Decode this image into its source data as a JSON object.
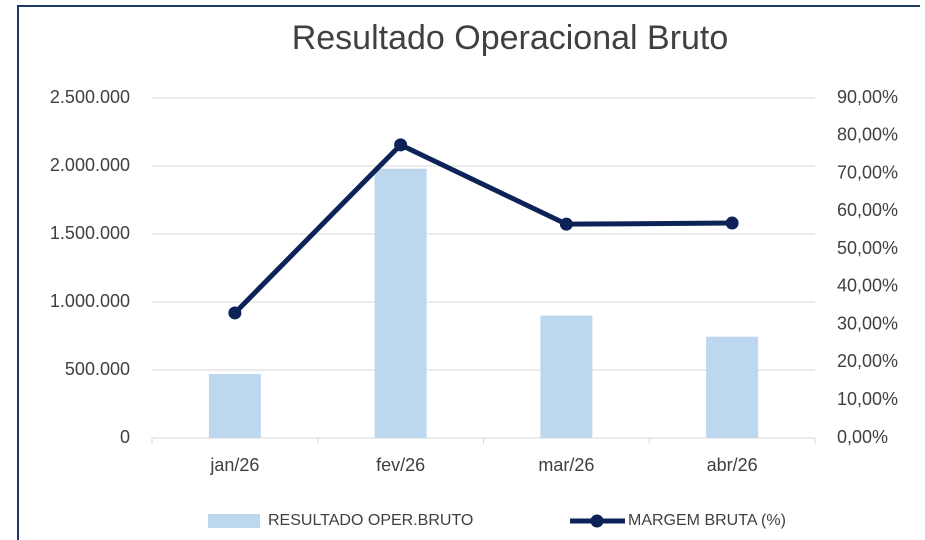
{
  "chart_data": {
    "type": "bar+line",
    "title": "Resultado Operacional Bruto",
    "categories": [
      "jan/26",
      "fev/26",
      "mar/26",
      "abr/26"
    ],
    "series": [
      {
        "name": "RESULTADO OPER.BRUTO",
        "type": "bar",
        "color": "#bdd7ee",
        "values": [
          470000,
          1980000,
          900000,
          745000
        ]
      },
      {
        "name": "MARGEM BRUTA (%)",
        "type": "line",
        "color": "#0d2357",
        "axis": "y2",
        "values": [
          33.1,
          77.6,
          56.6,
          56.9
        ]
      }
    ],
    "ylim": [
      0,
      2500000
    ],
    "yticks": [
      0,
      {
        "value": 500000,
        "label": "500.000"
      },
      {
        "value": 1000000,
        "label": "1.000.000"
      },
      {
        "value": 1500000,
        "label": "1.500.000"
      },
      {
        "value": 2000000,
        "label": "2.000.000"
      },
      {
        "value": 2500000,
        "label": "2.500.000"
      }
    ],
    "y2lim": [
      0,
      90
    ],
    "y2ticks": [
      {
        "value": 0,
        "label": "0,00%"
      },
      {
        "value": 10,
        "label": "10,00%"
      },
      {
        "value": 20,
        "label": "20,00%"
      },
      {
        "value": 30,
        "label": "30,00%"
      },
      {
        "value": 40,
        "label": "40,00%"
      },
      {
        "value": 50,
        "label": "50,00%"
      },
      {
        "value": 60,
        "label": "60,00%"
      },
      {
        "value": 70,
        "label": "70,00%"
      },
      {
        "value": 80,
        "label": "80,00%"
      },
      {
        "value": 90,
        "label": "90,00%"
      }
    ],
    "grid": true,
    "legend": "bottom"
  }
}
